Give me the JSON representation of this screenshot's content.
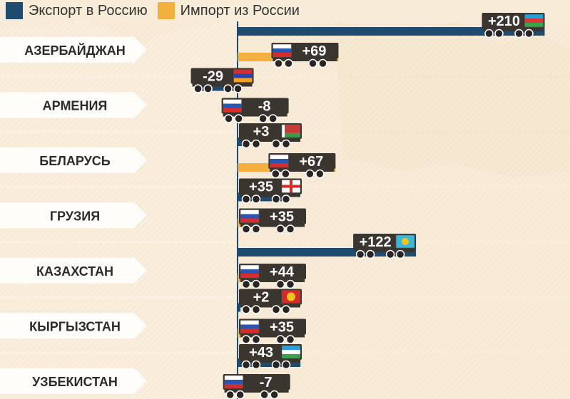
{
  "legend": {
    "export_label": "Экспорт в Россию",
    "import_label": "Импорт из России",
    "export_color": "#1e4b6e",
    "import_color": "#f4b03f"
  },
  "chart_data": {
    "type": "bar",
    "orientation": "horizontal",
    "categories": [
      "АЗЕРБАЙДЖАН",
      "АРМЕНИЯ",
      "БЕЛАРУСЬ",
      "ГРУЗИЯ",
      "КАЗАХСТАН",
      "КЫРГЫЗСТАН",
      "УЗБЕКИСТАН"
    ],
    "series": [
      {
        "name": "Экспорт в Россию",
        "values": [
          210,
          -29,
          3,
          35,
          122,
          2,
          43
        ],
        "labels": [
          "+210",
          "-29",
          "+3",
          "+35",
          "+122",
          "+2",
          "+43"
        ]
      },
      {
        "name": "Импорт из России",
        "values": [
          69,
          -8,
          67,
          35,
          44,
          35,
          -7
        ],
        "labels": [
          "+69",
          "-8",
          "+67",
          "+35",
          "+44",
          "+35",
          "-7"
        ]
      }
    ],
    "flags": {
      "import": "russia-flag-icon",
      "export": [
        "azerbaijan-flag-icon",
        "armenia-flag-icon",
        "belarus-flag-icon",
        "georgia-flag-icon",
        "kazakhstan-flag-icon",
        "kyrgyzstan-flag-icon",
        "uzbekistan-flag-icon"
      ]
    },
    "xlim": [
      -30,
      215
    ],
    "grid": false,
    "legend_position": "top-left"
  }
}
